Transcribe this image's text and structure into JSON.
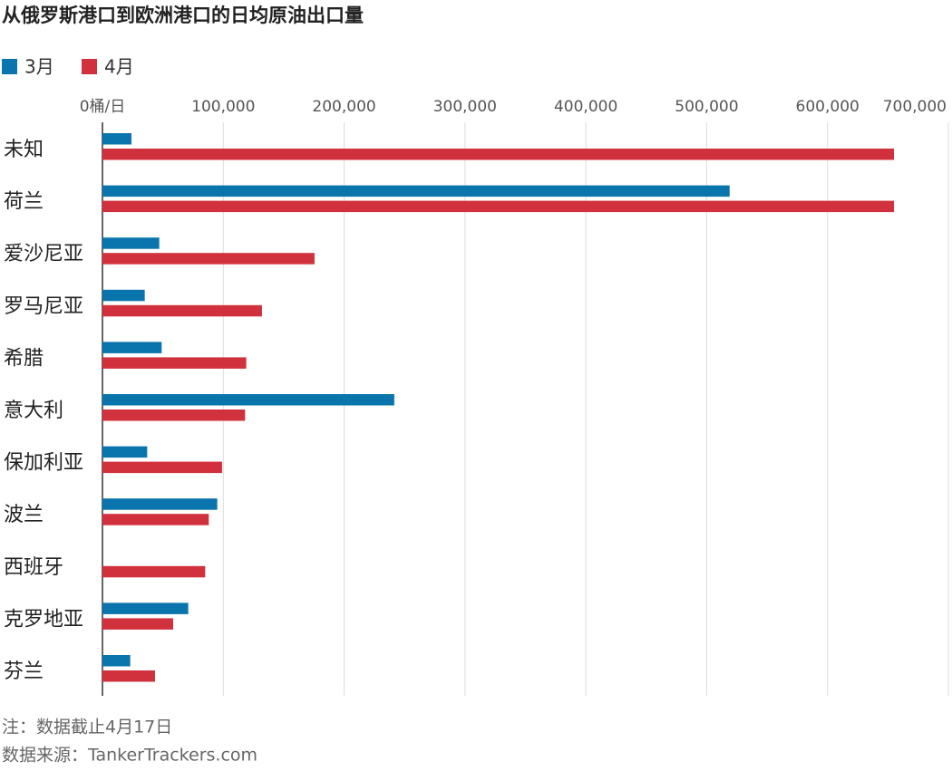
{
  "chart_data": {
    "type": "bar",
    "orientation": "horizontal",
    "title": "从俄罗斯港口到欧洲港口的日均原油出口量",
    "categories": [
      "未知",
      "荷兰",
      "爱沙尼亚",
      "罗马尼亚",
      "希腊",
      "意大利",
      "保加利亚",
      "波兰",
      "西班牙",
      "克罗地亚",
      "芬兰"
    ],
    "series": [
      {
        "name": "3月",
        "color": "#0a75ad",
        "values": [
          24000,
          519000,
          47000,
          35000,
          49000,
          241500,
          37000,
          95000,
          0,
          71000,
          23000
        ]
      },
      {
        "name": "4月",
        "color": "#d1313d",
        "values": [
          655000,
          655000,
          175500,
          132000,
          119000,
          118000,
          99000,
          88000,
          85000,
          58500,
          43500
        ]
      }
    ],
    "xlim": [
      0,
      700000
    ],
    "xticks": [
      {
        "value": 0,
        "label": "0桶/日"
      },
      {
        "value": 100000,
        "label": "100,000"
      },
      {
        "value": 200000,
        "label": "200,000"
      },
      {
        "value": 300000,
        "label": "300,000"
      },
      {
        "value": 400000,
        "label": "400,000"
      },
      {
        "value": 500000,
        "label": "500,000"
      },
      {
        "value": 600000,
        "label": "600,000"
      },
      {
        "value": 700000,
        "label": "700,000"
      }
    ],
    "grid": true,
    "notes": [
      "注：数据截止4月17日",
      "数据来源：TankerTrackers.com"
    ]
  }
}
